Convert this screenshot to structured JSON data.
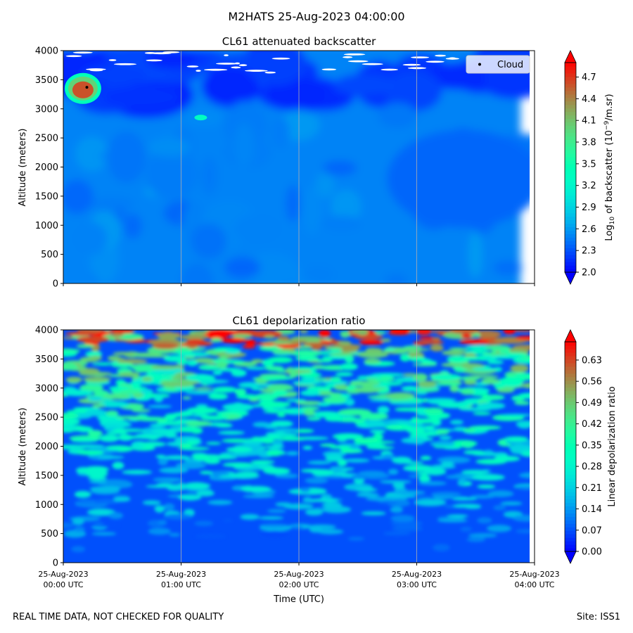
{
  "figure": {
    "suptitle": "M2HATS 25-Aug-2023 04:00:00",
    "footer_left": "REAL TIME DATA, NOT CHECKED FOR QUALITY",
    "footer_right": "Site: ISS1",
    "xlabel": "Time (UTC)"
  },
  "chart_data": [
    {
      "type": "heatmap",
      "title": "CL61 attenuated backscatter",
      "ylabel": "Altitude (meters)",
      "xlabel": "",
      "ylim": [
        0,
        4000
      ],
      "yticks": [
        0,
        500,
        1000,
        1500,
        2000,
        2500,
        3000,
        3500,
        4000
      ],
      "x_tick_labels": [],
      "grid_x": true,
      "colormap": "rainbow",
      "colorbar": {
        "label_main": "Log",
        "label_sub": "10",
        "label_rest": " of backscatter (10",
        "label_sup": "−9",
        "label_end": "/m.sr)",
        "ticks": [
          2.0,
          2.3,
          2.6,
          2.9,
          3.2,
          3.5,
          3.8,
          4.1,
          4.4,
          4.7
        ],
        "tick_labels": [
          "2.0",
          "2.3",
          "2.6",
          "2.9",
          "3.2",
          "3.5",
          "3.8",
          "4.1",
          "4.4",
          "4.7"
        ],
        "range": [
          2.0,
          4.9
        ],
        "extend": "both"
      },
      "legend": {
        "entries": [
          "Cloud"
        ],
        "placement": "upper right"
      },
      "annotations": {
        "cloud_points": [
          {
            "time": "00:12",
            "altitude": 3370
          }
        ]
      },
      "features": {
        "background_level": 2.5,
        "upper_level": 2.2,
        "cloud_patch": {
          "time": "00:10",
          "altitude": 3350,
          "value": 4.6
        }
      }
    },
    {
      "type": "heatmap",
      "title": "CL61 depolarization ratio",
      "ylabel": "Altitude (meters)",
      "xlabel": "Time (UTC)",
      "ylim": [
        0,
        4000
      ],
      "yticks": [
        0,
        500,
        1000,
        1500,
        2000,
        2500,
        3000,
        3500,
        4000
      ],
      "x_ticks": [
        "00:00",
        "01:00",
        "02:00",
        "03:00",
        "04:00"
      ],
      "x_tick_labels": [
        [
          "25-Aug-2023",
          "00:00 UTC"
        ],
        [
          "25-Aug-2023",
          "01:00 UTC"
        ],
        [
          "25-Aug-2023",
          "02:00 UTC"
        ],
        [
          "25-Aug-2023",
          "03:00 UTC"
        ],
        [
          "25-Aug-2023",
          "04:00 UTC"
        ]
      ],
      "grid_x": true,
      "colormap": "rainbow",
      "colorbar": {
        "label": "Linear depolarization ratio",
        "ticks": [
          0.0,
          0.07,
          0.14,
          0.21,
          0.28,
          0.35,
          0.42,
          0.49,
          0.56,
          0.63
        ],
        "tick_labels": [
          "0.00",
          "0.07",
          "0.14",
          "0.21",
          "0.28",
          "0.35",
          "0.42",
          "0.49",
          "0.56",
          "0.63"
        ],
        "range": [
          0.0,
          0.69
        ],
        "extend": "both"
      },
      "features": {
        "low_level": 0.07,
        "mid_level": 0.3,
        "high_level": 0.55
      }
    }
  ]
}
